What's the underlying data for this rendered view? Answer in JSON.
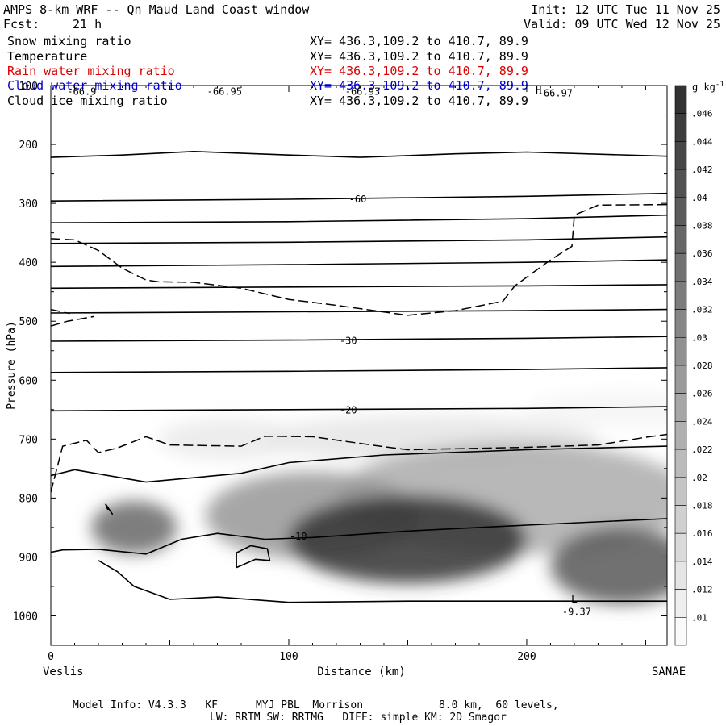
{
  "header": {
    "title": "AMPS 8-km WRF -- Qn Maud Land Coast window",
    "init": "Init: 12 UTC Tue 11 Nov 25",
    "fcst_label": "Fcst:",
    "fcst_value": "21 h",
    "valid": "Valid: 09 UTC Wed 12 Nov 25"
  },
  "legend": [
    {
      "name": "Snow mixing ratio",
      "xy": "XY= 436.3,109.2 to 410.7, 89.9",
      "color": "#000000"
    },
    {
      "name": "Temperature",
      "xy": "XY= 436.3,109.2 to 410.7, 89.9",
      "color": "#000000"
    },
    {
      "name": "Rain water mixing ratio",
      "xy": "XY= 436.3,109.2 to 410.7, 89.9",
      "color": "#dd0000"
    },
    {
      "name": "Cloud water mixing ratio",
      "xy": "XY= 436.3,109.2 to 410.7, 89.9",
      "color": "#0000cc"
    },
    {
      "name": "Cloud ice mixing ratio",
      "xy": "XY= 436.3,109.2 to 410.7, 89.9",
      "color": "#000000"
    }
  ],
  "chart_data": {
    "type": "cross-section contour",
    "xlabel": "Distance (km)",
    "ylabel": "Pressure (hPa)",
    "xlim": [
      0,
      259
    ],
    "ylim": [
      1050,
      100
    ],
    "xticks": [
      0,
      100,
      200
    ],
    "yticks": [
      100,
      200,
      300,
      400,
      500,
      600,
      700,
      800,
      900,
      1000
    ],
    "endpoints": {
      "left": "Veslis",
      "right": "SANAE"
    },
    "colorbar": {
      "unit_base": "g kg",
      "unit_exp": "-1",
      "levels": [
        ".046",
        ".044",
        ".042",
        ".04",
        ".038",
        ".036",
        ".034",
        ".032",
        ".03",
        ".028",
        ".026",
        ".024",
        ".022",
        ".02",
        ".018",
        ".016",
        ".014",
        ".012",
        ".01"
      ],
      "min": 0.009,
      "max": 0.048
    },
    "snow_blobs": [
      {
        "x": 150,
        "p": 870,
        "peak": 0.047,
        "rx": 50,
        "rp": 75
      },
      {
        "x": 240,
        "p": 915,
        "peak": 0.04,
        "rx": 30,
        "rp": 65
      },
      {
        "x": 35,
        "p": 850,
        "peak": 0.037,
        "rx": 18,
        "rp": 45
      },
      {
        "x": 195,
        "p": 800,
        "peak": 0.024,
        "rx": 75,
        "rp": 95
      },
      {
        "x": 110,
        "p": 830,
        "peak": 0.028,
        "rx": 45,
        "rp": 75
      },
      {
        "x": 75,
        "p": 700,
        "peak": 0.012,
        "rx": 30,
        "rp": 35
      },
      {
        "x": 160,
        "p": 700,
        "peak": 0.013,
        "rx": 70,
        "rp": 40
      },
      {
        "x": 240,
        "p": 650,
        "peak": 0.01,
        "rx": 40,
        "rp": 30
      }
    ],
    "temperature_contours": [
      {
        "x": [
          0,
          30,
          60,
          100,
          130,
          170,
          200,
          259
        ],
        "p": [
          222,
          218,
          212,
          218,
          222,
          216,
          213,
          220
        ]
      },
      {
        "x": [
          0,
          100,
          200,
          259
        ],
        "p": [
          296,
          293,
          288,
          283
        ]
      },
      {
        "x": [
          0,
          100,
          200,
          259
        ],
        "p": [
          333,
          331,
          326,
          320
        ]
      },
      {
        "x": [
          0,
          100,
          200,
          259
        ],
        "p": [
          368,
          366,
          362,
          357
        ]
      },
      {
        "x": [
          0,
          100,
          200,
          259
        ],
        "p": [
          407,
          404,
          400,
          396
        ]
      },
      {
        "x": [
          0,
          100,
          200,
          259
        ],
        "p": [
          444,
          442,
          440,
          438
        ]
      },
      {
        "x": [
          0,
          100,
          200,
          259
        ],
        "p": [
          486,
          484,
          482,
          480
        ]
      },
      {
        "x": [
          0,
          100,
          200,
          259
        ],
        "p": [
          534,
          532,
          529,
          526
        ]
      },
      {
        "x": [
          0,
          100,
          200,
          259
        ],
        "p": [
          587,
          585,
          582,
          579
        ]
      },
      {
        "x": [
          0,
          100,
          200,
          259
        ],
        "p": [
          652,
          650,
          648,
          645
        ]
      },
      {
        "x": [
          0,
          10,
          40,
          80,
          100,
          140,
          200,
          259
        ],
        "p": [
          762,
          752,
          773,
          758,
          740,
          727,
          718,
          712
        ]
      },
      {
        "x": [
          0,
          5,
          20,
          40,
          55,
          70,
          90,
          110,
          150,
          200,
          259
        ],
        "p": [
          892,
          888,
          887,
          895,
          870,
          860,
          870,
          867,
          856,
          846,
          835
        ]
      },
      {
        "x": [
          20,
          28,
          35,
          50,
          70,
          100,
          150,
          200,
          259
        ],
        "p": [
          906,
          925,
          950,
          972,
          968,
          977,
          975,
          975,
          975
        ]
      }
    ],
    "small_loop": {
      "x": [
        78,
        86,
        92,
        91,
        84,
        78,
        78
      ],
      "p": [
        918,
        904,
        906,
        886,
        881,
        893,
        918
      ]
    },
    "tiny_hook": {
      "x": [
        24,
        23,
        26
      ],
      "p": [
        820,
        810,
        828
      ]
    },
    "ice_contours": [
      {
        "x": [
          0,
          10,
          20,
          30,
          40,
          45,
          60,
          80,
          100,
          120,
          150,
          170,
          190,
          195,
          210,
          219,
          220,
          230,
          259
        ],
        "p": [
          360,
          362,
          380,
          410,
          430,
          433,
          434,
          444,
          463,
          473,
          490,
          482,
          466,
          440,
          396,
          373,
          320,
          303,
          302
        ]
      },
      {
        "x": [
          0,
          7,
          18
        ],
        "p": [
          508,
          500,
          492
        ]
      },
      {
        "x": [
          0,
          8
        ],
        "p": [
          480,
          487
        ]
      },
      {
        "x": [
          0,
          5,
          15,
          20,
          28,
          40,
          50,
          80,
          90,
          110,
          140,
          150,
          200,
          230,
          250,
          259
        ],
        "p": [
          790,
          712,
          702,
          723,
          715,
          696,
          710,
          712,
          695,
          696,
          713,
          718,
          714,
          710,
          697,
          692
        ]
      }
    ],
    "contour_labels": [
      {
        "text": "-60",
        "x": 129,
        "p": 293
      },
      {
        "text": "-30",
        "x": 125,
        "p": 533
      },
      {
        "text": "-20",
        "x": 125,
        "p": 651
      },
      {
        "text": "-10",
        "x": 104,
        "p": 865
      },
      {
        "text": "-66.9",
        "x": 13,
        "p": 110
      },
      {
        "text": "-66.95",
        "x": 73,
        "p": 110
      },
      {
        "text": "-66.93",
        "x": 131,
        "p": 110
      },
      {
        "text": "-66.97",
        "x": 212,
        "p": 113
      },
      {
        "text": "-9.37",
        "x": 221,
        "p": 993
      }
    ],
    "low_marker": {
      "text": "L",
      "x": 220,
      "p": 972
    },
    "high_marker": {
      "text": "H",
      "x": 205,
      "p": 108
    }
  },
  "footer": {
    "line1": "Model Info: V4.3.3   KF      MYJ PBL  Morrison            8.0 km,  60 levels,",
    "line2": "LW: RRTM SW: RRTMG   DIFF: simple KM: 2D Smagor"
  }
}
